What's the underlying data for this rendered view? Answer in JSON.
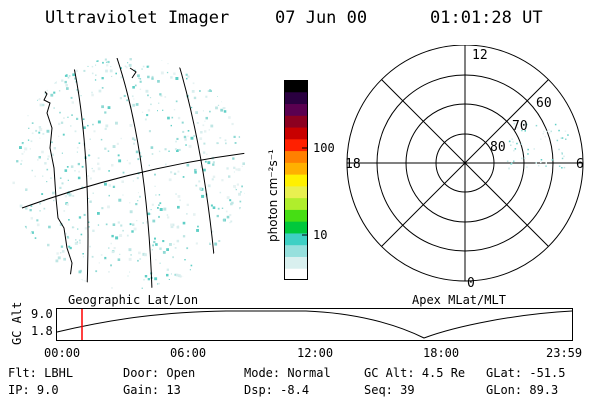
{
  "header": {
    "instrument": "Ultraviolet Imager",
    "date": "07 Jun 00",
    "time": "01:01:28 UT"
  },
  "colorbar": {
    "unit_label": "photon cm⁻²s⁻¹",
    "tick_100": "100",
    "tick_10": "10",
    "colors": [
      "#ffffff",
      "#d9f0ef",
      "#96e0dd",
      "#3ed0c4",
      "#00c83c",
      "#46de14",
      "#b0ee2c",
      "#e8f050",
      "#fff000",
      "#ffb000",
      "#ff8000",
      "#ff2000",
      "#c80000",
      "#8c0020",
      "#5a0050",
      "#2a0040",
      "#000000"
    ]
  },
  "geographic_panel": {
    "label": "Geographic Lat/Lon"
  },
  "polar_panel": {
    "label": "Apex MLat/MLT",
    "mlt_labels": {
      "top": "12",
      "left": "18",
      "right": "6",
      "bottom": "0"
    },
    "lat_labels": [
      "60",
      "70",
      "80"
    ]
  },
  "alt_plot": {
    "ylabel": "GC Alt",
    "y_ticks": [
      "9.0",
      "1.8"
    ],
    "x_ticks": [
      "00:00",
      "06:00",
      "12:00",
      "18:00",
      "23:59"
    ],
    "current_time_marker": "01:01",
    "marker_color": "#ff0000"
  },
  "info": {
    "filter": {
      "label": "Flt:",
      "value": "LBHL"
    },
    "ip": {
      "label": "IP:",
      "value": "9.0"
    },
    "door": {
      "label": "Door:",
      "value": "Open"
    },
    "gain": {
      "label": "Gain:",
      "value": "13"
    },
    "mode": {
      "label": "Mode:",
      "value": "Normal"
    },
    "dsp": {
      "label": "Dsp:",
      "value": "-8.4"
    },
    "gc_alt": {
      "label": "GC Alt:",
      "value": "4.5 Re"
    },
    "seq": {
      "label": "Seq:",
      "value": "39"
    },
    "glat": {
      "label": "GLat:",
      "value": "-51.5"
    },
    "glon": {
      "label": "GLon:",
      "value": "89.3"
    }
  }
}
